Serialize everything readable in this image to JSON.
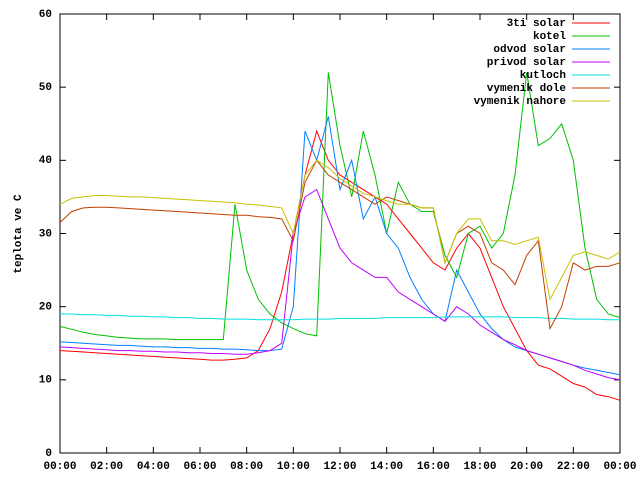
{
  "chart_data": {
    "type": "line",
    "ylabel": "teplota ve C",
    "x": [
      0,
      0.5,
      1,
      1.5,
      2,
      2.5,
      3,
      3.5,
      4,
      4.5,
      5,
      5.5,
      6,
      6.5,
      7,
      7.5,
      8,
      8.5,
      9,
      9.5,
      10,
      10.5,
      11,
      11.5,
      12,
      12.5,
      13,
      13.5,
      14,
      14.5,
      15,
      15.5,
      16,
      16.5,
      17,
      17.5,
      18,
      18.5,
      19,
      19.5,
      20,
      20.5,
      21,
      21.5,
      22,
      22.5,
      23,
      23.5,
      24
    ],
    "xlim": [
      0,
      24
    ],
    "xticks": [
      {
        "value": 0,
        "label": "00:00"
      },
      {
        "value": 2,
        "label": "02:00"
      },
      {
        "value": 4,
        "label": "04:00"
      },
      {
        "value": 6,
        "label": "06:00"
      },
      {
        "value": 8,
        "label": "08:00"
      },
      {
        "value": 10,
        "label": "10:00"
      },
      {
        "value": 12,
        "label": "12:00"
      },
      {
        "value": 14,
        "label": "14:00"
      },
      {
        "value": 16,
        "label": "16:00"
      },
      {
        "value": 18,
        "label": "18:00"
      },
      {
        "value": 20,
        "label": "20:00"
      },
      {
        "value": 22,
        "label": "22:00"
      },
      {
        "value": 24,
        "label": "00:00"
      }
    ],
    "ylim": [
      0,
      60
    ],
    "yticks": [
      0,
      10,
      20,
      30,
      40,
      50,
      60
    ],
    "legend": "top-right",
    "series": [
      {
        "name": "3ti solar",
        "color": "#ff0000",
        "values": [
          14,
          13.9,
          13.8,
          13.7,
          13.6,
          13.5,
          13.4,
          13.3,
          13.2,
          13.1,
          13,
          12.9,
          12.8,
          12.7,
          12.7,
          12.8,
          13,
          14,
          17,
          22,
          30,
          38,
          44,
          40,
          38,
          37,
          36,
          35,
          34,
          32,
          30,
          28,
          26,
          25,
          28,
          30,
          28,
          24,
          20,
          17,
          14,
          12,
          11.5,
          10.5,
          9.5,
          9,
          8,
          7.7,
          7.2
        ]
      },
      {
        "name": "kotel",
        "color": "#00c000",
        "values": [
          17.3,
          16.9,
          16.5,
          16.2,
          16,
          15.8,
          15.7,
          15.6,
          15.6,
          15.6,
          15.5,
          15.5,
          15.5,
          15.5,
          15.5,
          34,
          25,
          21,
          19,
          17.8,
          17,
          16.3,
          16,
          52,
          42,
          35,
          44,
          38,
          30,
          37,
          34,
          33,
          33,
          27,
          24,
          30,
          31,
          28,
          30,
          38,
          52,
          42,
          43,
          45,
          40,
          28,
          21,
          19,
          18.5
        ]
      },
      {
        "name": "odvod solar",
        "color": "#0080ff",
        "values": [
          15.2,
          15.1,
          15,
          14.9,
          14.8,
          14.7,
          14.7,
          14.6,
          14.5,
          14.5,
          14.4,
          14.4,
          14.3,
          14.3,
          14.2,
          14.2,
          14.1,
          14,
          14,
          14.2,
          20,
          44,
          40,
          46,
          36,
          40,
          32,
          35,
          30,
          28,
          24,
          21,
          19,
          18,
          25,
          22,
          19,
          17,
          15.5,
          14.5,
          14,
          13.5,
          13,
          12.5,
          12,
          11.6,
          11.3,
          11,
          10.7
        ]
      },
      {
        "name": "privod solar",
        "color": "#c000ff",
        "values": [
          14.5,
          14.4,
          14.3,
          14.2,
          14.1,
          14,
          14,
          13.9,
          13.9,
          13.8,
          13.8,
          13.7,
          13.7,
          13.6,
          13.6,
          13.5,
          13.5,
          13.7,
          14,
          15,
          30,
          35,
          36,
          32,
          28,
          26,
          25,
          24,
          24,
          22,
          21,
          20,
          19,
          18,
          20,
          19,
          17.5,
          16.5,
          15.5,
          14.8,
          14,
          13.5,
          13,
          12.5,
          12,
          11.3,
          10.8,
          10.3,
          10
        ]
      },
      {
        "name": "kutloch",
        "color": "#00e0e0",
        "values": [
          19,
          19,
          18.9,
          18.9,
          18.8,
          18.8,
          18.7,
          18.7,
          18.6,
          18.6,
          18.5,
          18.5,
          18.4,
          18.4,
          18.3,
          18.3,
          18.3,
          18.2,
          18.2,
          18.2,
          18.2,
          18.3,
          18.3,
          18.3,
          18.4,
          18.4,
          18.4,
          18.4,
          18.5,
          18.5,
          18.5,
          18.5,
          18.5,
          18.6,
          18.6,
          18.6,
          18.6,
          18.6,
          18.6,
          18.5,
          18.5,
          18.5,
          18.4,
          18.4,
          18.3,
          18.3,
          18.3,
          18.2,
          18.2
        ]
      },
      {
        "name": "vymenik dole",
        "color": "#c04000",
        "values": [
          31.5,
          33,
          33.5,
          33.6,
          33.6,
          33.5,
          33.4,
          33.3,
          33.2,
          33.1,
          33,
          32.9,
          32.8,
          32.7,
          32.6,
          32.5,
          32.5,
          32.3,
          32.2,
          32,
          29,
          37,
          40,
          38,
          37,
          36,
          35,
          34,
          35,
          34.5,
          34,
          33.5,
          33.5,
          26,
          30,
          31,
          30,
          26,
          25,
          23,
          27,
          29,
          17,
          20,
          26,
          25,
          25.5,
          25.5,
          26
        ]
      },
      {
        "name": "vymenik nahore",
        "color": "#c8c000",
        "values": [
          34,
          34.8,
          35,
          35.2,
          35.2,
          35.1,
          35,
          35,
          34.9,
          34.8,
          34.7,
          34.6,
          34.5,
          34.4,
          34.3,
          34.2,
          34,
          33.9,
          33.7,
          33.5,
          30,
          38,
          40,
          39,
          37.5,
          36.5,
          35.5,
          35,
          34.5,
          34,
          34,
          33.5,
          33.5,
          26,
          30,
          32,
          32,
          29,
          29,
          28.5,
          29,
          29.5,
          21,
          24,
          27,
          27.5,
          27,
          26.5,
          27.5
        ]
      }
    ]
  }
}
